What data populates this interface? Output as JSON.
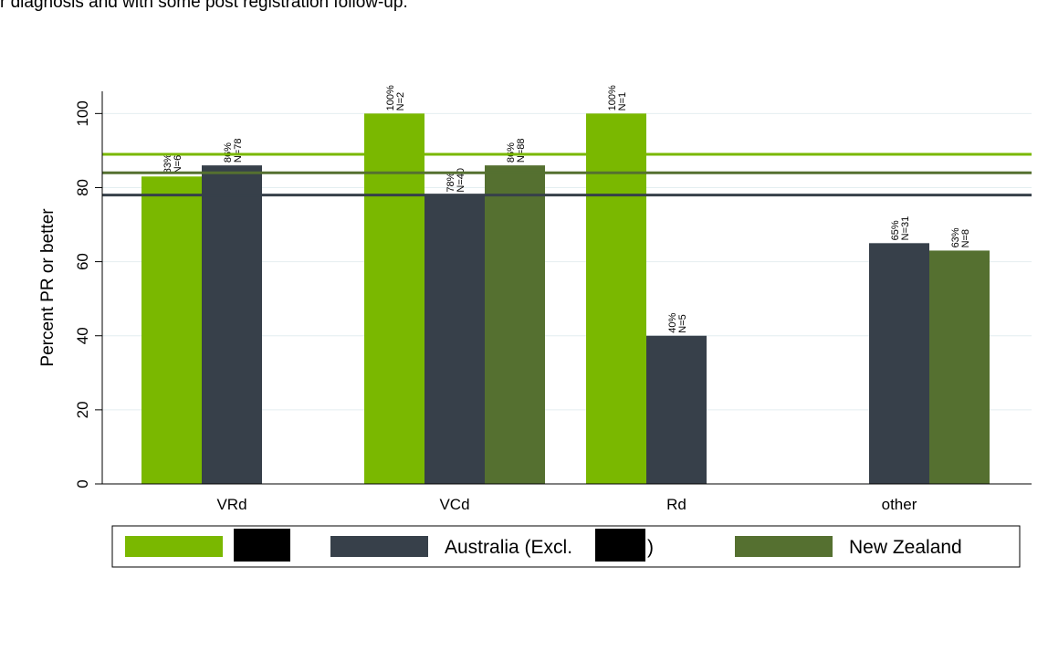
{
  "caption": "r diagnosis and with some post registration follow-up.",
  "chart_data": {
    "type": "bar",
    "ylabel": "Percent PR or better",
    "categories": [
      "VRd",
      "VCd",
      "Rd",
      "other"
    ],
    "series": [
      {
        "color": "#7ab800",
        "values": [
          83,
          100,
          100,
          null
        ],
        "value_labels": [
          "83%",
          "100%",
          "100%",
          null
        ],
        "n_labels": [
          "N=6",
          "N=2",
          "N=1",
          null
        ]
      },
      {
        "name": "Australia (Excl.",
        "name_end": ")",
        "color": "#37404a",
        "values": [
          86,
          78,
          40,
          65
        ],
        "value_labels": [
          "86%",
          "78%",
          "40%",
          "65%"
        ],
        "n_labels": [
          "N=78",
          "N=40",
          "N=5",
          "N=31"
        ]
      },
      {
        "name": "New Zealand",
        "color": "#557030",
        "values": [
          null,
          86,
          null,
          63
        ],
        "value_labels": [
          null,
          "86%",
          null,
          "63%"
        ],
        "n_labels": [
          null,
          "N=88",
          null,
          "N=8"
        ]
      }
    ],
    "reference_lines": [
      {
        "value": 89,
        "color": "#7ab800"
      },
      {
        "value": 84,
        "color": "#557030"
      },
      {
        "value": 78,
        "color": "#37404a"
      }
    ],
    "ylim": [
      0,
      106
    ],
    "yticks": [
      0,
      20,
      40,
      60,
      80,
      100
    ],
    "grid": true
  }
}
